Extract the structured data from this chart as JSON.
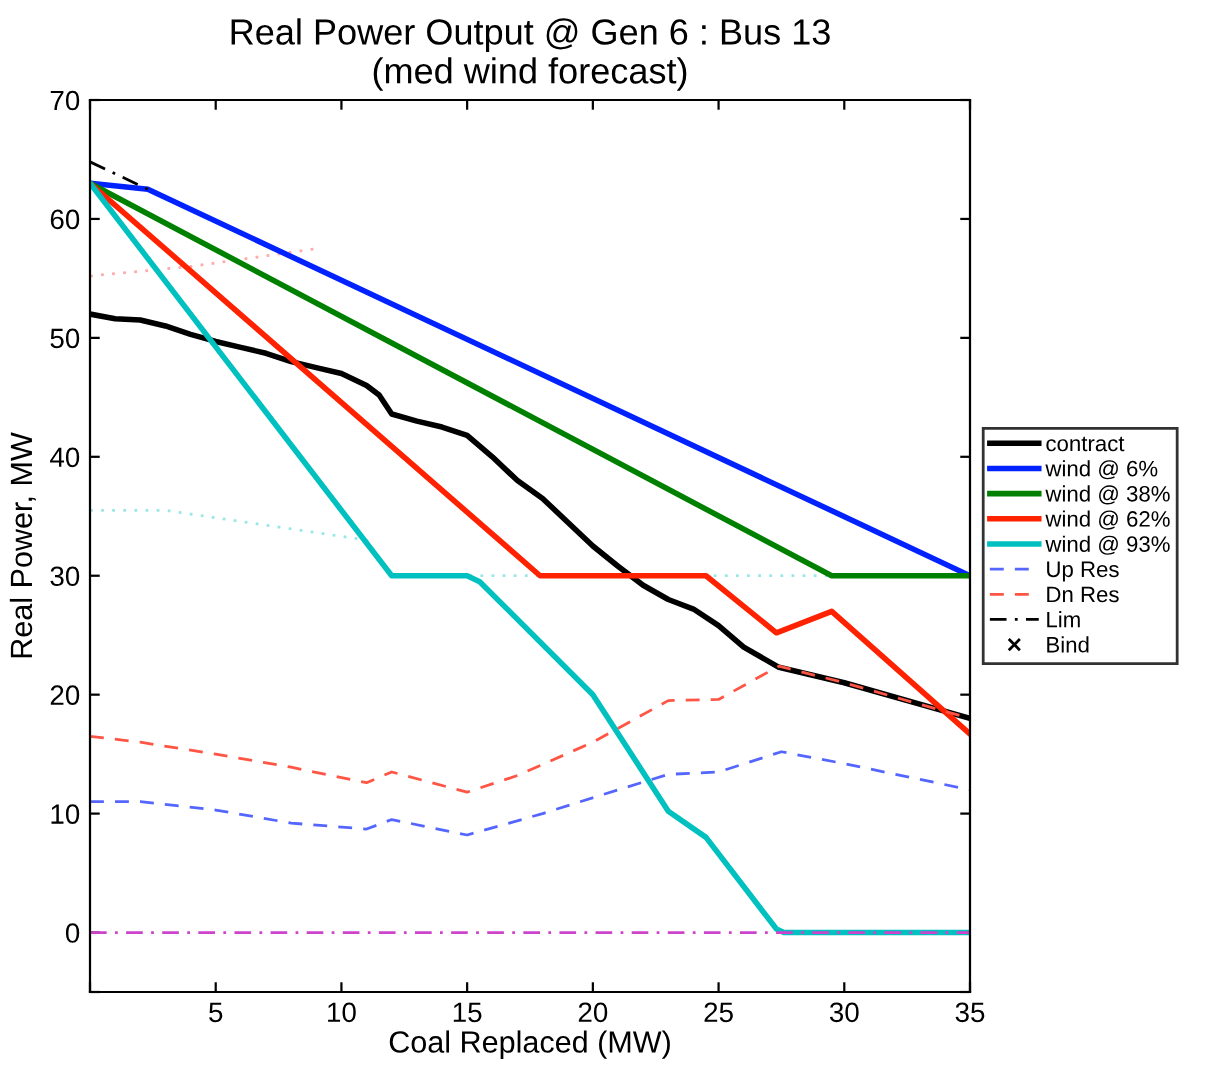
{
  "chart_data": {
    "type": "line",
    "title": "Real Power Output @ Gen 6 : Bus 13\n(med wind forecast)",
    "xlabel": "Coal Replaced (MW)",
    "ylabel": "Real Power, MW",
    "xlim": [
      0,
      35
    ],
    "xticks": [
      {
        "value": 0,
        "label": null
      },
      5,
      10,
      15,
      20,
      25,
      30,
      35
    ],
    "ylim": [
      -5,
      70
    ],
    "yticks": [
      {
        "value": -5,
        "label": null
      },
      0,
      10,
      20,
      30,
      40,
      50,
      60,
      70
    ],
    "grid": false,
    "legend": "right",
    "marker": "none",
    "series": [
      {
        "color": "#99e6e6",
        "line_style": "dotted",
        "x": [
          0,
          3,
          11,
          12,
          35
        ],
        "values": [
          35.5,
          35.5,
          33,
          30,
          30
        ]
      },
      {
        "color": "#ffaaaa",
        "line_style": "dotted",
        "x": [
          0,
          4,
          9
        ],
        "values": [
          55.2,
          56,
          57.5
        ]
      },
      {
        "name": "contract",
        "color": "#000000",
        "line_style": "solid",
        "x": [
          0,
          1,
          2,
          3,
          4,
          5,
          6,
          7,
          8,
          9,
          10,
          11,
          11.5,
          12,
          13,
          14,
          15,
          16,
          17,
          18,
          19,
          20,
          21,
          22,
          23,
          24,
          25,
          26,
          27.4,
          30,
          33,
          35
        ],
        "values": [
          52,
          51.6,
          51.5,
          51,
          50.3,
          49.7,
          49.2,
          48.7,
          48,
          47.5,
          47,
          46,
          45.2,
          43.6,
          43,
          42.5,
          41.8,
          40,
          38,
          36.5,
          34.5,
          32.5,
          30.8,
          29.2,
          28,
          27.2,
          25.8,
          24,
          22.3,
          21,
          19.2,
          18
        ]
      },
      {
        "name": "wind @ 6%",
        "color": "#0022ff",
        "line_style": "solid",
        "x": [
          0,
          2.3,
          35
        ],
        "values": [
          63,
          62.5,
          30
        ]
      },
      {
        "name": "wind @ 38%",
        "color": "#008000",
        "line_style": "solid",
        "x": [
          0,
          29.5,
          35
        ],
        "values": [
          63,
          30,
          30
        ]
      },
      {
        "name": "wind @ 62%",
        "color": "#ff2200",
        "line_style": "solid",
        "x": [
          0,
          17.9,
          24.5,
          27.3,
          29.5,
          35
        ],
        "values": [
          63,
          30,
          30,
          25.2,
          27,
          16.7
        ]
      },
      {
        "name": "wind @ 93%",
        "color": "#00c0c0",
        "line_style": "solid",
        "x": [
          0,
          12,
          15,
          15.5,
          20,
          23,
          24.5,
          27.3,
          27.6,
          35
        ],
        "values": [
          63,
          30,
          30,
          29.5,
          20,
          10.2,
          8,
          0.3,
          0,
          0
        ]
      },
      {
        "name": "Up Res",
        "color": "#5566ff",
        "line_style": "dashed",
        "x": [
          0,
          2,
          5,
          8,
          11,
          12,
          15,
          18,
          21,
          23,
          25,
          27.5,
          30,
          35
        ],
        "values": [
          11,
          11,
          10.3,
          9.2,
          8.7,
          9.5,
          8.2,
          10,
          12,
          13.3,
          13.5,
          15.2,
          14.2,
          12
        ]
      },
      {
        "name": "Dn Res",
        "color": "#ff5544",
        "line_style": "dashed",
        "x": [
          0,
          2,
          5,
          8,
          11,
          12,
          15,
          17,
          20,
          23,
          25,
          27.4,
          30,
          35
        ],
        "values": [
          16.5,
          16,
          15,
          13.9,
          12.6,
          13.5,
          11.8,
          13.2,
          16,
          19.5,
          19.6,
          22.4,
          21,
          18
        ]
      },
      {
        "name": "Lim",
        "color": "#000000",
        "line_style": "dashdot",
        "x": [
          0,
          2.3
        ],
        "values": [
          64.8,
          62.5
        ]
      },
      {
        "color": "#cc44cc",
        "line_style": "dashdot",
        "x": [
          0,
          35
        ],
        "values": [
          0,
          0
        ]
      },
      {
        "name": "Bind",
        "color": "#000000",
        "line_style": "none",
        "marker": "cross"
      }
    ]
  }
}
